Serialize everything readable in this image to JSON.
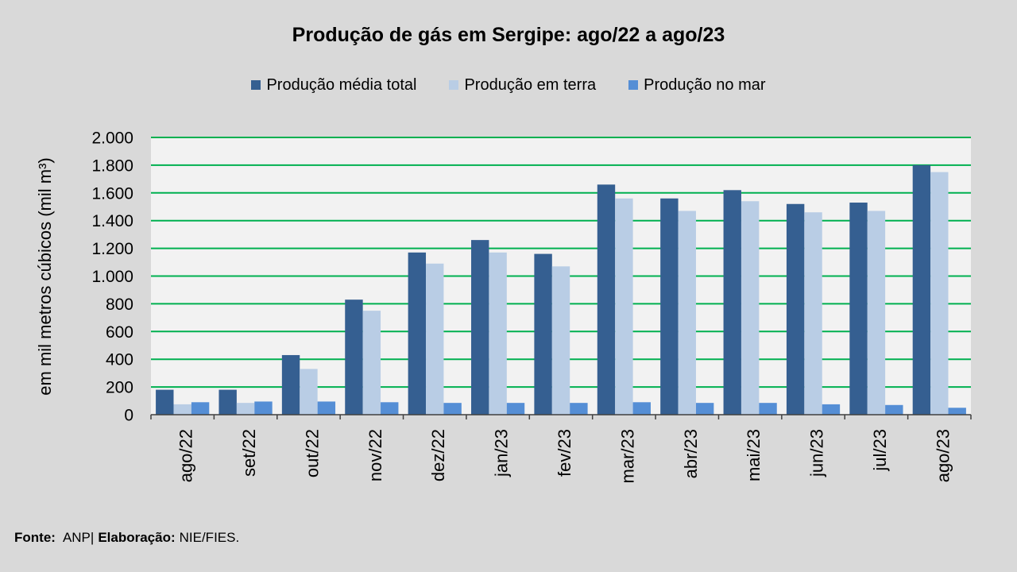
{
  "chart_data": {
    "type": "bar",
    "title": "Produção de gás em Sergipe: ago/22 a ago/23",
    "xlabel": "",
    "ylabel": "em mil metros cúbicos (mil m³)",
    "categories": [
      "ago/22",
      "set/22",
      "out/22",
      "nov/22",
      "dez/22",
      "jan/23",
      "fev/23",
      "mar/23",
      "abr/23",
      "mai/23",
      "jun/23",
      "jul/23",
      "ago/23"
    ],
    "series": [
      {
        "name": "Produção média total",
        "color": "#355f91",
        "values": [
          180,
          180,
          430,
          830,
          1170,
          1260,
          1160,
          1660,
          1560,
          1620,
          1520,
          1530,
          1800
        ]
      },
      {
        "name": "Produção em terra",
        "color": "#b9cde5",
        "values": [
          75,
          85,
          330,
          750,
          1090,
          1170,
          1070,
          1560,
          1470,
          1540,
          1460,
          1470,
          1750
        ]
      },
      {
        "name": "Produção no mar",
        "color": "#558ed5",
        "values": [
          90,
          95,
          95,
          90,
          85,
          85,
          85,
          90,
          85,
          85,
          75,
          70,
          50
        ]
      }
    ],
    "ylim": [
      0,
      2000
    ],
    "yticks": [
      0,
      200,
      400,
      600,
      800,
      1000,
      1200,
      1400,
      1600,
      1800,
      2000
    ],
    "ytick_labels": [
      "0",
      "200",
      "400",
      "600",
      "800",
      "1.000",
      "1.200",
      "1.400",
      "1.600",
      "1.800",
      "2.000"
    ],
    "legend": "top",
    "grid": true,
    "gridline_color": "#00b050",
    "plot_background": "#f2f2f2",
    "axis_color": "#404040"
  },
  "footer": {
    "source_label": "Fonte:",
    "source": "ANP|",
    "credit_label": "Elaboração:",
    "credit": "NIE/FIES."
  },
  "page": {
    "background": "#d9d9d9"
  }
}
